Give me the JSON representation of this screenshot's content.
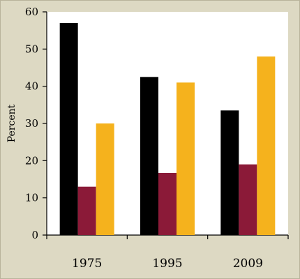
{
  "chart_data": {
    "type": "bar",
    "categories": [
      "1975",
      "1995",
      "2009"
    ],
    "series": [
      {
        "values": [
          57,
          42.5,
          33.5
        ],
        "color": "#000000"
      },
      {
        "values": [
          13,
          16.7,
          19
        ],
        "color": "#8b1a38"
      },
      {
        "values": [
          30,
          41,
          48
        ],
        "color": "#f5b21d"
      }
    ],
    "title": "",
    "xlabel": "",
    "ylabel": "Percent",
    "ylim": [
      0,
      60
    ],
    "yticks": [
      "0",
      "10",
      "20",
      "30",
      "40",
      "50",
      "60"
    ],
    "grid": false,
    "plot_background": "#ffffff"
  }
}
